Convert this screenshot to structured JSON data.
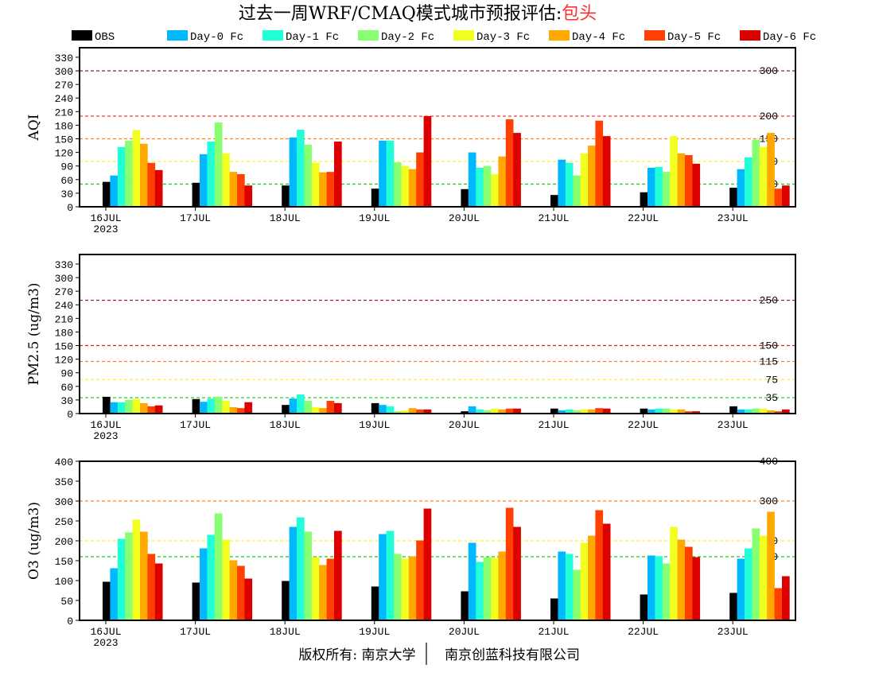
{
  "title": {
    "prefix": "过去一周WRF/CMAQ模式城市预报评估:",
    "city": "包头",
    "city_color": "#ff3030"
  },
  "footer": {
    "left": "版权所有: 南京大学",
    "right": "南京创蓝科技有限公司"
  },
  "chart_data": {
    "type": "bar",
    "categories": [
      "16JUL",
      "17JUL",
      "18JUL",
      "19JUL",
      "20JUL",
      "21JUL",
      "22JUL",
      "23JUL"
    ],
    "year_label": "2023",
    "legend": [
      {
        "name": "OBS",
        "color": "#000000"
      },
      {
        "name": "Day-0 Fc",
        "color": "#00b8ff"
      },
      {
        "name": "Day-1 Fc",
        "color": "#20ffd8"
      },
      {
        "name": "Day-2 Fc",
        "color": "#88ff70"
      },
      {
        "name": "Day-3 Fc",
        "color": "#f0ff20"
      },
      {
        "name": "Day-4 Fc",
        "color": "#ffa800"
      },
      {
        "name": "Day-5 Fc",
        "color": "#ff4000"
      },
      {
        "name": "Day-6 Fc",
        "color": "#dd0000"
      }
    ],
    "panels": [
      {
        "ylabel": "AQI",
        "ylim": [
          0,
          351
        ],
        "yticks": [
          0,
          30,
          60,
          90,
          120,
          150,
          180,
          210,
          240,
          270,
          300,
          330
        ],
        "thresholds": [
          {
            "value": 300,
            "label": "300",
            "color": "#800030"
          },
          {
            "value": 200,
            "label": "200",
            "color": "#ff2020"
          },
          {
            "value": 150,
            "label": "150",
            "color": "#ff8020"
          },
          {
            "value": 100,
            "label": "100",
            "color": "#ffee30"
          },
          {
            "value": 50,
            "label": "50",
            "color": "#10d010"
          }
        ],
        "series": [
          [
            55,
            53,
            47,
            40,
            39,
            26,
            32,
            42
          ],
          [
            69,
            116,
            153,
            146,
            120,
            104,
            86,
            83
          ],
          [
            132,
            144,
            170,
            146,
            86,
            97,
            88,
            109
          ],
          [
            146,
            186,
            137,
            98,
            90,
            69,
            77,
            148
          ],
          [
            169,
            118,
            97,
            90,
            72,
            118,
            156,
            132
          ],
          [
            139,
            77,
            76,
            83,
            111,
            135,
            118,
            163
          ],
          [
            97,
            72,
            77,
            120,
            193,
            190,
            114,
            40
          ],
          [
            81,
            47,
            144,
            200,
            163,
            156,
            95,
            47
          ]
        ]
      },
      {
        "ylabel": "PM2.5 (ug/m3)",
        "ylim": [
          0,
          351
        ],
        "yticks": [
          0,
          30,
          60,
          90,
          120,
          150,
          180,
          210,
          240,
          270,
          300,
          330
        ],
        "thresholds": [
          {
            "value": 250,
            "label": "250",
            "color": "#b00050"
          },
          {
            "value": 150,
            "label": "150",
            "color": "#e02020"
          },
          {
            "value": 115,
            "label": "115",
            "color": "#ff8020"
          },
          {
            "value": 75,
            "label": "75",
            "color": "#ffee30"
          },
          {
            "value": 35,
            "label": "35",
            "color": "#10d010"
          }
        ],
        "series": [
          [
            37,
            32,
            19,
            23,
            5,
            11,
            11,
            16
          ],
          [
            25,
            26,
            33,
            19,
            16,
            7,
            9,
            9
          ],
          [
            25,
            33,
            42,
            16,
            9,
            9,
            11,
            9
          ],
          [
            30,
            37,
            28,
            5,
            7,
            7,
            11,
            11
          ],
          [
            32,
            28,
            14,
            7,
            11,
            9,
            9,
            11
          ],
          [
            23,
            14,
            12,
            12,
            9,
            9,
            9,
            7
          ],
          [
            16,
            12,
            28,
            9,
            11,
            12,
            5,
            5
          ],
          [
            18,
            25,
            23,
            9,
            11,
            11,
            5,
            9
          ]
        ]
      },
      {
        "ylabel": "O3 (ug/m3)",
        "ylim": [
          0,
          400
        ],
        "yticks": [
          0,
          50,
          100,
          150,
          200,
          250,
          300,
          350,
          400
        ],
        "thresholds": [
          {
            "value": 400,
            "label": "400",
            "color": "#ff2020"
          },
          {
            "value": 300,
            "label": "300",
            "color": "#ff8020"
          },
          {
            "value": 200,
            "label": "200",
            "color": "#ffee30"
          },
          {
            "value": 160,
            "label": "160",
            "color": "#10d010"
          }
        ],
        "series": [
          [
            97,
            95,
            99,
            85,
            73,
            55,
            65,
            69
          ],
          [
            131,
            181,
            235,
            217,
            195,
            173,
            163,
            155
          ],
          [
            205,
            215,
            259,
            225,
            147,
            167,
            161,
            181
          ],
          [
            221,
            269,
            223,
            167,
            159,
            127,
            143,
            231
          ],
          [
            253,
            203,
            159,
            155,
            157,
            195,
            235,
            213
          ],
          [
            223,
            151,
            139,
            161,
            173,
            213,
            203,
            273
          ],
          [
            167,
            137,
            155,
            201,
            283,
            277,
            185,
            81
          ],
          [
            143,
            105,
            225,
            281,
            235,
            243,
            159,
            111
          ]
        ]
      }
    ]
  }
}
